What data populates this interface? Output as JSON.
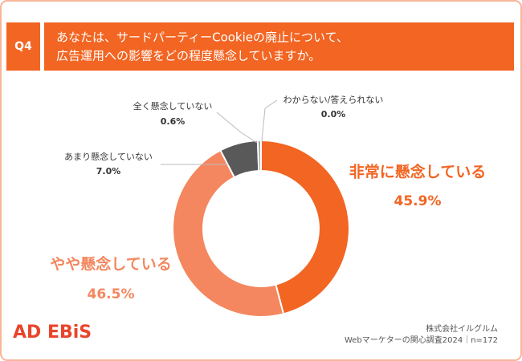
{
  "chart_data": {
    "type": "donut",
    "question_label": "Q4",
    "title": [
      "あなたは、サードパーティーCookieの廃止について、",
      "広告運用への影響をどの程度懸念していますか。"
    ],
    "categories": [
      "非常に懸念している",
      "やや懸念している",
      "あまり懸念していない",
      "全く懸念していない",
      "わからない/答えられない"
    ],
    "values": [
      45.9,
      46.5,
      7.0,
      0.6,
      0.0
    ],
    "value_labels": [
      "45.9%",
      "46.5%",
      "7.0%",
      "0.6%",
      "0.0%"
    ],
    "colors": [
      "#f26522",
      "#f4875f",
      "#595959",
      "#a6a6a6",
      "#d9d9d9"
    ],
    "logo": "AD EBiS",
    "source": [
      "株式会社イルグルム",
      "Webマーケターの関心調査2024｜n=172"
    ]
  }
}
